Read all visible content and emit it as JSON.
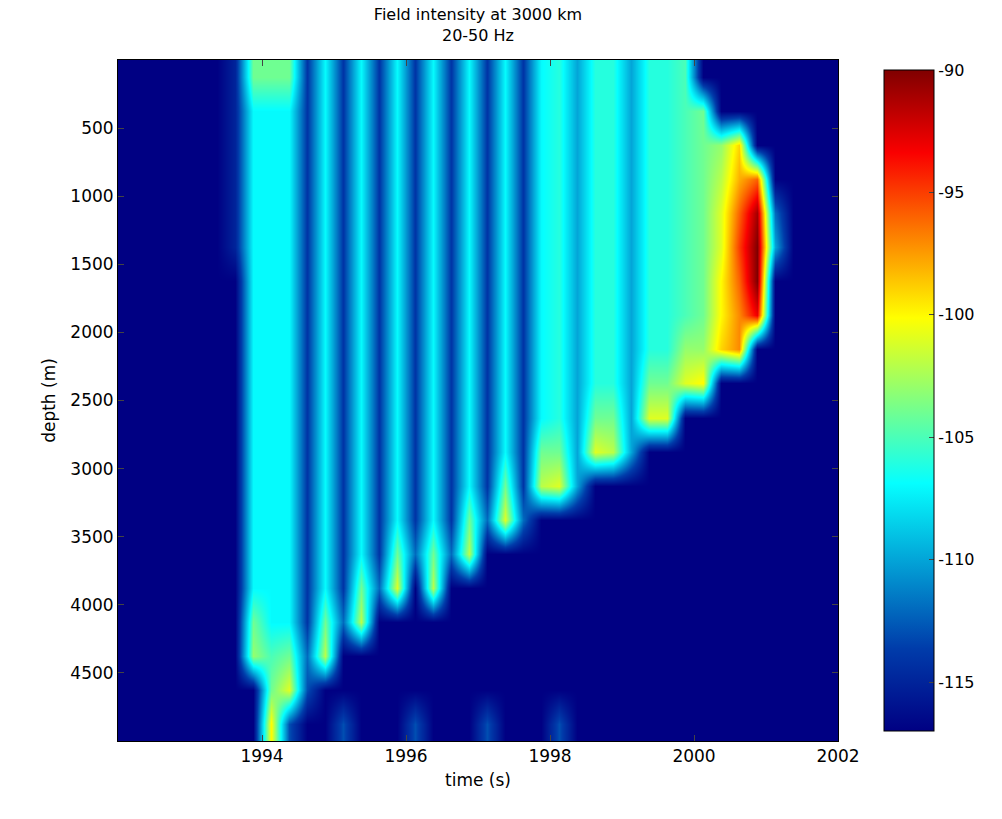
{
  "chart_data": {
    "type": "heatmap",
    "title": "Field intensity at 3000 km",
    "subtitle": "20-50 Hz",
    "x_label": "time (s)",
    "y_label": "depth (m)",
    "color": "jet",
    "x": [
      1992.125,
      1992.375,
      1992.625,
      1992.875,
      1993.125,
      1993.375,
      1993.625,
      1993.875,
      1994.125,
      1994.375,
      1994.625,
      1994.875,
      1995.125,
      1995.375,
      1995.625,
      1995.875,
      1996.125,
      1996.375,
      1996.625,
      1996.875,
      1997.125,
      1997.375,
      1997.625,
      1997.875,
      1998.125,
      1998.375,
      1998.625,
      1998.875,
      1999.125,
      1999.375,
      1999.625,
      1999.875,
      2000.125,
      2000.375,
      2000.625,
      2000.875,
      2001.125,
      2001.375,
      2001.625,
      2001.875
    ],
    "y": [
      125,
      375,
      625,
      875,
      1125,
      1375,
      1625,
      1875,
      2125,
      2375,
      2625,
      2875,
      3125,
      3375,
      3625,
      3875,
      4125,
      4375,
      4625,
      4875
    ],
    "z": [
      [
        -117,
        -117,
        -117,
        -117,
        -117,
        -117,
        -115,
        -104,
        -104,
        -104,
        -114,
        -107,
        -114,
        -107,
        -114,
        -107,
        -114,
        -107,
        -114,
        -107,
        -114,
        -107,
        -114,
        -107,
        -106,
        -110,
        -106,
        -106,
        -110,
        -106,
        -106,
        -105,
        -117,
        -117,
        -117,
        -117,
        -117,
        -117,
        -117,
        -117
      ],
      [
        -117,
        -117,
        -117,
        -117,
        -117,
        -117,
        -115,
        -107,
        -107,
        -107,
        -114,
        -107,
        -114,
        -107,
        -114,
        -107,
        -114,
        -107,
        -114,
        -107,
        -114,
        -107,
        -114,
        -107,
        -106,
        -110,
        -106,
        -106,
        -110,
        -106,
        -106,
        -105,
        -104,
        -117,
        -117,
        -117,
        -117,
        -117,
        -117,
        -117
      ],
      [
        -117,
        -117,
        -117,
        -117,
        -117,
        -117,
        -115,
        -107,
        -107,
        -107,
        -114,
        -107,
        -114,
        -107,
        -114,
        -107,
        -114,
        -107,
        -114,
        -107,
        -114,
        -107,
        -114,
        -107,
        -106,
        -110,
        -106,
        -106,
        -110,
        -106,
        -106,
        -105,
        -104,
        -103,
        -99,
        -117,
        -117,
        -117,
        -117,
        -117
      ],
      [
        -117,
        -117,
        -117,
        -117,
        -117,
        -117,
        -115,
        -107,
        -107,
        -107,
        -114,
        -107,
        -114,
        -107,
        -114,
        -107,
        -114,
        -107,
        -114,
        -107,
        -114,
        -107,
        -114,
        -107,
        -106,
        -110,
        -106,
        -106,
        -110,
        -106,
        -106,
        -105,
        -104,
        -102,
        -98,
        -96,
        -117,
        -117,
        -117,
        -117
      ],
      [
        -117,
        -117,
        -117,
        -117,
        -117,
        -117,
        -115,
        -107,
        -107,
        -107,
        -114,
        -107,
        -114,
        -107,
        -114,
        -107,
        -114,
        -107,
        -114,
        -107,
        -114,
        -107,
        -114,
        -107,
        -106,
        -110,
        -106,
        -106,
        -110,
        -106,
        -106,
        -105,
        -104,
        -101,
        -96,
        -91,
        -112,
        -117,
        -117,
        -117
      ],
      [
        -117,
        -117,
        -117,
        -117,
        -117,
        -117,
        -115,
        -107,
        -107,
        -107,
        -114,
        -107,
        -114,
        -107,
        -114,
        -107,
        -114,
        -107,
        -114,
        -107,
        -114,
        -107,
        -114,
        -107,
        -106,
        -110,
        -106,
        -106,
        -110,
        -106,
        -106,
        -105,
        -104,
        -101,
        -95,
        -90,
        -110,
        -117,
        -117,
        -117
      ],
      [
        -117,
        -117,
        -117,
        -117,
        -117,
        -117,
        -117,
        -107,
        -107,
        -107,
        -114,
        -107,
        -114,
        -107,
        -114,
        -107,
        -114,
        -107,
        -114,
        -107,
        -114,
        -107,
        -114,
        -107,
        -106,
        -110,
        -106,
        -106,
        -110,
        -106,
        -106,
        -105,
        -104,
        -100,
        -96,
        -90,
        -117,
        -117,
        -117,
        -117
      ],
      [
        -117,
        -117,
        -117,
        -117,
        -117,
        -117,
        -117,
        -107,
        -107,
        -107,
        -114,
        -107,
        -114,
        -107,
        -114,
        -107,
        -114,
        -107,
        -114,
        -107,
        -114,
        -107,
        -114,
        -107,
        -106,
        -110,
        -106,
        -106,
        -110,
        -106,
        -106,
        -105,
        -104,
        -100,
        -97,
        -93,
        -117,
        -117,
        -117,
        -117
      ],
      [
        -117,
        -117,
        -117,
        -117,
        -117,
        -117,
        -117,
        -107,
        -107,
        -107,
        -114,
        -107,
        -114,
        -107,
        -114,
        -107,
        -114,
        -107,
        -114,
        -107,
        -114,
        -107,
        -114,
        -107,
        -106,
        -110,
        -106,
        -106,
        -110,
        -106,
        -106,
        -103,
        -103,
        -99,
        -97,
        -117,
        -117,
        -117,
        -117,
        -117
      ],
      [
        -117,
        -117,
        -117,
        -117,
        -117,
        -117,
        -117,
        -107,
        -107,
        -107,
        -114,
        -107,
        -114,
        -107,
        -114,
        -107,
        -114,
        -107,
        -114,
        -107,
        -114,
        -107,
        -114,
        -107,
        -106,
        -110,
        -106,
        -106,
        -110,
        -104,
        -104,
        -101,
        -100,
        -117,
        -117,
        -117,
        -117,
        -117,
        -117,
        -117
      ],
      [
        -117,
        -117,
        -117,
        -117,
        -117,
        -117,
        -117,
        -107,
        -107,
        -107,
        -114,
        -107,
        -114,
        -107,
        -114,
        -107,
        -114,
        -107,
        -114,
        -107,
        -114,
        -107,
        -114,
        -107,
        -106,
        -110,
        -104,
        -104,
        -110,
        -101,
        -101,
        -117,
        -117,
        -117,
        -117,
        -117,
        -117,
        -117,
        -117,
        -117
      ],
      [
        -117,
        -117,
        -117,
        -117,
        -117,
        -117,
        -117,
        -107,
        -107,
        -107,
        -114,
        -107,
        -114,
        -107,
        -114,
        -107,
        -114,
        -107,
        -114,
        -107,
        -114,
        -107,
        -114,
        -104,
        -104,
        -110,
        -101,
        -102,
        -110,
        -117,
        -117,
        -117,
        -117,
        -117,
        -117,
        -117,
        -117,
        -117,
        -117,
        -117
      ],
      [
        -117,
        -117,
        -117,
        -117,
        -117,
        -117,
        -117,
        -107,
        -107,
        -107,
        -114,
        -107,
        -114,
        -107,
        -114,
        -107,
        -114,
        -107,
        -114,
        -107,
        -114,
        -104,
        -114,
        -102,
        -101,
        -110,
        -117,
        -117,
        -117,
        -117,
        -117,
        -117,
        -117,
        -117,
        -117,
        -117,
        -117,
        -117,
        -117,
        -117
      ],
      [
        -117,
        -117,
        -117,
        -117,
        -117,
        -117,
        -117,
        -107,
        -107,
        -107,
        -114,
        -107,
        -114,
        -107,
        -114,
        -107,
        -114,
        -107,
        -114,
        -104,
        -112,
        -101,
        -112,
        -117,
        -117,
        -117,
        -117,
        -117,
        -117,
        -117,
        -117,
        -117,
        -117,
        -117,
        -117,
        -117,
        -117,
        -117,
        -117,
        -117
      ],
      [
        -117,
        -117,
        -117,
        -117,
        -117,
        -117,
        -117,
        -107,
        -107,
        -107,
        -114,
        -107,
        -114,
        -107,
        -114,
        -104,
        -112,
        -104,
        -112,
        -102,
        -117,
        -117,
        -117,
        -117,
        -117,
        -117,
        -117,
        -117,
        -117,
        -117,
        -117,
        -117,
        -117,
        -117,
        -117,
        -117,
        -117,
        -117,
        -117,
        -117
      ],
      [
        -117,
        -117,
        -117,
        -117,
        -117,
        -117,
        -117,
        -107,
        -107,
        -107,
        -114,
        -107,
        -114,
        -104,
        -112,
        -101,
        -117,
        -102,
        -117,
        -117,
        -117,
        -117,
        -117,
        -117,
        -117,
        -117,
        -117,
        -117,
        -117,
        -117,
        -117,
        -117,
        -117,
        -117,
        -117,
        -117,
        -117,
        -117,
        -117,
        -117
      ],
      [
        -117,
        -117,
        -117,
        -117,
        -117,
        -117,
        -117,
        -104,
        -107,
        -107,
        -114,
        -104,
        -112,
        -102,
        -117,
        -117,
        -117,
        -117,
        -117,
        -117,
        -117,
        -117,
        -117,
        -117,
        -117,
        -117,
        -117,
        -117,
        -117,
        -117,
        -117,
        -117,
        -117,
        -117,
        -117,
        -117,
        -117,
        -117,
        -117,
        -117
      ],
      [
        -117,
        -117,
        -117,
        -117,
        -117,
        -117,
        -117,
        -103,
        -105,
        -104,
        -112,
        -102,
        -117,
        -117,
        -117,
        -117,
        -117,
        -117,
        -117,
        -117,
        -117,
        -117,
        -117,
        -117,
        -117,
        -117,
        -117,
        -117,
        -117,
        -117,
        -117,
        -117,
        -117,
        -117,
        -117,
        -117,
        -117,
        -117,
        -117,
        -117
      ],
      [
        -117,
        -117,
        -117,
        -117,
        -117,
        -117,
        -117,
        -117,
        -104,
        -101,
        -113,
        -117,
        -117,
        -117,
        -117,
        -117,
        -117,
        -117,
        -117,
        -117,
        -117,
        -117,
        -117,
        -117,
        -117,
        -117,
        -117,
        -117,
        -117,
        -117,
        -117,
        -117,
        -117,
        -117,
        -117,
        -117,
        -117,
        -117,
        -117,
        -117
      ],
      [
        -117,
        -117,
        -117,
        -117,
        -117,
        -117,
        -117,
        -117,
        -100,
        -113,
        -117,
        -117,
        -113,
        -117,
        -117,
        -117,
        -113,
        -117,
        -117,
        -117,
        -113,
        -117,
        -117,
        -117,
        -113,
        -117,
        -117,
        -117,
        -117,
        -117,
        -117,
        -117,
        -117,
        -117,
        -117,
        -117,
        -117,
        -117,
        -117,
        -117
      ]
    ],
    "xlim": [
      1992,
      2002
    ],
    "xticks": [
      1994,
      1996,
      1998,
      2000,
      2002
    ],
    "ylim": [
      5000,
      0
    ],
    "yticks": [
      500,
      1000,
      1500,
      2000,
      2500,
      3000,
      3500,
      4000,
      4500
    ],
    "colorbar": {
      "range": [
        -117,
        -90
      ],
      "ticks": [
        -115,
        -110,
        -105,
        -100,
        -95,
        -90
      ]
    }
  }
}
